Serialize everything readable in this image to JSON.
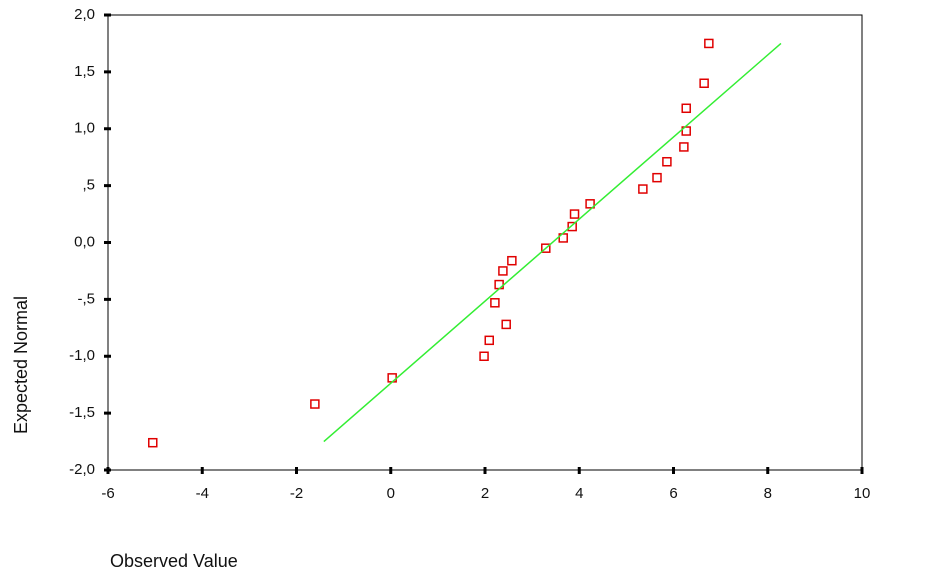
{
  "chart_data": {
    "type": "scatter",
    "x_label": "Observed Value",
    "y_label": "Expected Normal",
    "xlim": [
      -6,
      10
    ],
    "xticks": [
      -6,
      -4,
      -2,
      0,
      2,
      4,
      6,
      8,
      10
    ],
    "ylim": [
      -2,
      2
    ],
    "yticks": [
      {
        "value": 2,
        "label": "2,0"
      },
      {
        "value": 1.5,
        "label": "1,5"
      },
      {
        "value": 1,
        "label": "1,0"
      },
      {
        "value": 0.5,
        "label": ",5"
      },
      {
        "value": 0,
        "label": "0,0"
      },
      {
        "value": -0.5,
        "label": "-,5"
      },
      {
        "value": -1,
        "label": "-1,0"
      },
      {
        "value": -1.5,
        "label": "-1,5"
      },
      {
        "value": -2,
        "label": "-2,0"
      }
    ],
    "series": [
      {
        "color": "#e00000",
        "x": [
          -5.05,
          -1.61,
          0.03,
          1.98,
          2.09,
          2.45,
          2.21,
          2.3,
          2.38,
          2.57,
          3.29,
          3.66,
          3.85,
          3.9,
          4.23,
          5.35,
          5.65,
          5.86,
          6.22,
          6.27,
          6.27,
          6.65,
          6.75
        ],
        "values": [
          -1.76,
          -1.42,
          -1.19,
          -1.0,
          -0.86,
          -0.72,
          -0.53,
          -0.37,
          -0.25,
          -0.16,
          -0.05,
          0.04,
          0.14,
          0.25,
          0.34,
          0.47,
          0.57,
          0.71,
          0.84,
          0.98,
          1.18,
          1.4,
          1.75
        ]
      },
      {
        "type": "line",
        "color": "#33ee33",
        "x": [
          -1.42,
          8.28
        ],
        "values": [
          -1.75,
          1.75
        ]
      }
    ]
  }
}
